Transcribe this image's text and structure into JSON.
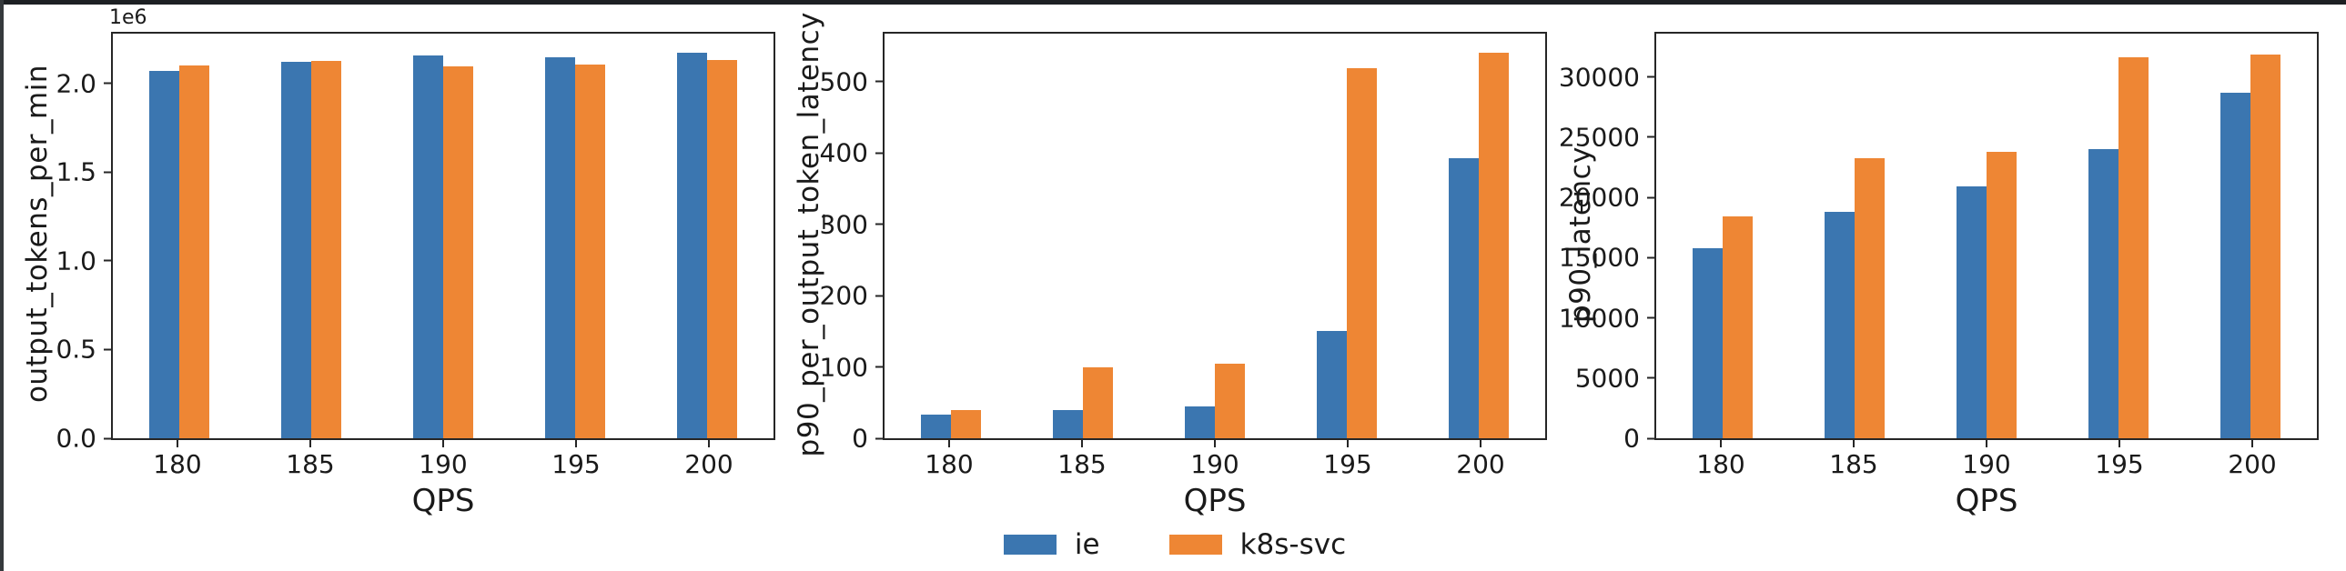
{
  "page": {
    "background": "#ffffff",
    "top_strip_color": "#1d2023",
    "left_strip_color": "#35393c",
    "axis_color": "#262626",
    "text_color": "#1a1a1a"
  },
  "legend": {
    "items": [
      {
        "label": "ie",
        "color": "#3b76b0"
      },
      {
        "label": "k8s-svc",
        "color": "#ee8634"
      }
    ]
  },
  "chart_data": [
    {
      "type": "bar",
      "title": "",
      "ylabel": "output_tokens_per_min",
      "xlabel": "QPS",
      "offset_text": "1e6",
      "categories": [
        "180",
        "185",
        "190",
        "195",
        "200"
      ],
      "series": [
        {
          "name": "ie",
          "color": "#3b76b0",
          "values": [
            2070000,
            2120000,
            2155000,
            2145000,
            2170000
          ]
        },
        {
          "name": "k8s-svc",
          "color": "#ee8634",
          "values": [
            2100000,
            2125000,
            2095000,
            2105000,
            2130000
          ]
        }
      ],
      "ylim": [
        0,
        2280000
      ],
      "yticks": [
        0,
        500000,
        1000000,
        1500000,
        2000000
      ],
      "ytick_labels": [
        "0.0",
        "0.5",
        "1.0",
        "1.5",
        "2.0"
      ],
      "grid": false,
      "legend_position": "bottom-center"
    },
    {
      "type": "bar",
      "title": "",
      "ylabel": "p90_per_output_token_latency",
      "xlabel": "QPS",
      "offset_text": "",
      "categories": [
        "180",
        "185",
        "190",
        "195",
        "200"
      ],
      "series": [
        {
          "name": "ie",
          "color": "#3b76b0",
          "values": [
            33,
            39,
            44,
            151,
            393
          ]
        },
        {
          "name": "k8s-svc",
          "color": "#ee8634",
          "values": [
            40,
            100,
            104,
            518,
            540
          ]
        }
      ],
      "ylim": [
        0,
        567
      ],
      "yticks": [
        0,
        100,
        200,
        300,
        400,
        500
      ],
      "ytick_labels": [
        "0",
        "100",
        "200",
        "300",
        "400",
        "500"
      ],
      "grid": false,
      "legend_position": "bottom-center"
    },
    {
      "type": "bar",
      "title": "",
      "ylabel": "p90_latency",
      "xlabel": "QPS",
      "offset_text": "",
      "categories": [
        "180",
        "185",
        "190",
        "195",
        "200"
      ],
      "series": [
        {
          "name": "ie",
          "color": "#3b76b0",
          "values": [
            15800,
            18800,
            20900,
            24000,
            28700
          ]
        },
        {
          "name": "k8s-svc",
          "color": "#ee8634",
          "values": [
            18400,
            23250,
            23750,
            31650,
            31900
          ]
        }
      ],
      "ylim": [
        0,
        33600
      ],
      "yticks": [
        0,
        5000,
        10000,
        15000,
        20000,
        25000,
        30000
      ],
      "ytick_labels": [
        "0",
        "5000",
        "10000",
        "15000",
        "20000",
        "25000",
        "30000"
      ],
      "grid": false,
      "legend_position": "bottom-center"
    }
  ]
}
